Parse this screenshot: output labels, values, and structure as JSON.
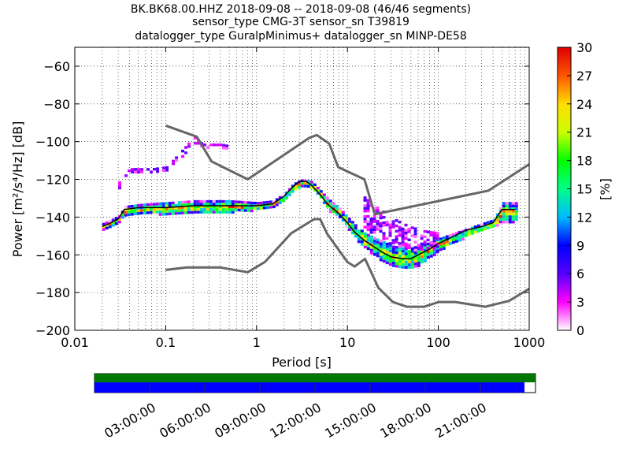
{
  "title_lines": [
    "BK.BK68.00.HHZ   2018-09-08 -- 2018-09-08  (46/46 segments)",
    "sensor_type CMG-3T sensor_sn T39819",
    "datalogger_type GuralpMinimus+ datalogger_sn MINP-DE58"
  ],
  "chart_data": {
    "type": "heatmap",
    "xlabel": "Period [s]",
    "ylabel": "Power [m²/s⁴/Hz] [dB]",
    "x_scale": "log",
    "xlim": [
      0.01,
      1000
    ],
    "ylim": [
      -200,
      -50
    ],
    "x_ticks": [
      {
        "value": 0.01,
        "label": "0.01"
      },
      {
        "value": 0.1,
        "label": "0.1"
      },
      {
        "value": 1,
        "label": "1"
      },
      {
        "value": 10,
        "label": "10"
      },
      {
        "value": 100,
        "label": "100"
      },
      {
        "value": 1000,
        "label": "1000"
      }
    ],
    "y_ticks": [
      -60,
      -80,
      -100,
      -120,
      -140,
      -160,
      -180,
      -200
    ],
    "y_tick_labels": [
      "−60",
      "−80",
      "−100",
      "−120",
      "−140",
      "−160",
      "−180",
      "−200"
    ],
    "grid": true,
    "colorbar": {
      "label": "[%]",
      "range": [
        0,
        30
      ],
      "ticks": [
        0,
        3,
        6,
        9,
        12,
        15,
        18,
        21,
        24,
        27,
        30
      ],
      "colors": [
        "#ffffff",
        "#ff00ff",
        "#5500ff",
        "#0000ff",
        "#00bbff",
        "#00ff88",
        "#00ff00",
        "#ccff00",
        "#ffdd00",
        "#ff5500",
        "#dd0000"
      ]
    },
    "series": [
      {
        "role": "nhnm",
        "color": "#666666",
        "x": [
          0.1,
          0.17,
          0.4,
          0.8,
          1.24,
          2.4,
          4.3,
          5,
          6,
          10,
          12,
          15.6,
          21.9,
          31.6,
          45,
          70,
          101,
          154,
          328,
          600,
          1000
        ],
        "y": [
          -168,
          -166.7,
          -166.7,
          -169.2,
          -163.7,
          -148.6,
          -141.1,
          -141.1,
          -149,
          -163.8,
          -166.2,
          -162.1,
          -177.5,
          -185,
          -187.5,
          -187.5,
          -185,
          -185,
          -187.5,
          -184.4,
          -178
        ]
      },
      {
        "role": "nlnm",
        "color": "#666666",
        "x": [
          0.1,
          0.22,
          0.32,
          0.8,
          3.8,
          4.6,
          6.3,
          7.9,
          15.4,
          20,
          354.8,
          1000
        ],
        "y": [
          -91.5,
          -97.4,
          -110.5,
          -120,
          -98,
          -96.5,
          -101,
          -113.5,
          -120,
          -138.5,
          -126,
          -112
        ]
      },
      {
        "role": "mode",
        "color": "#000000",
        "x": [
          0.02,
          0.025,
          0.03,
          0.035,
          0.05,
          0.1,
          0.2,
          0.5,
          1,
          1.5,
          2,
          2.5,
          3,
          3.5,
          4,
          5,
          6,
          8,
          10,
          12,
          15,
          20,
          25,
          30,
          40,
          50,
          60,
          80,
          100,
          150,
          200,
          300,
          400,
          500,
          700
        ],
        "y": [
          -145,
          -143,
          -141,
          -136,
          -135,
          -135,
          -134,
          -134,
          -134,
          -133,
          -129,
          -124,
          -121,
          -121,
          -123,
          -128,
          -133,
          -138,
          -143,
          -148,
          -152,
          -156,
          -159,
          -161,
          -162,
          -162,
          -160,
          -157,
          -154,
          -150,
          -147,
          -145,
          -143,
          -136,
          -136
        ]
      }
    ],
    "density_bands": [
      {
        "x": [
          0.02,
          0.025,
          0.03,
          0.035,
          0.05,
          0.1,
          0.2,
          0.5,
          1
        ],
        "lower": [
          -146,
          -144,
          -142,
          -139,
          -138,
          -138,
          -138,
          -137,
          -136
        ],
        "upper": [
          -143,
          -141,
          -139,
          -134,
          -133,
          -132,
          -131,
          -131,
          -132
        ]
      },
      {
        "x": [
          1,
          1.5,
          2,
          2.5,
          3,
          3.5,
          4,
          5,
          6,
          8,
          10,
          12,
          15,
          20,
          25,
          30,
          40,
          50,
          60,
          80,
          100,
          150,
          200,
          300,
          400,
          500,
          700
        ],
        "lower": [
          -136,
          -134,
          -131,
          -126,
          -123,
          -123,
          -125,
          -130,
          -136,
          -140,
          -146,
          -151,
          -156,
          -160,
          -164,
          -166,
          -167,
          -167,
          -165,
          -161,
          -157,
          -153,
          -150,
          -147,
          -145,
          -142,
          -142
        ],
        "upper": [
          -132,
          -131,
          -127,
          -122,
          -120,
          -120,
          -121,
          -126,
          -130,
          -135,
          -140,
          -144,
          -148,
          -151,
          -153,
          -155,
          -156,
          -156,
          -155,
          -153,
          -151,
          -148,
          -146,
          -143,
          -141,
          -132,
          -132
        ]
      },
      {
        "x": [
          0.03,
          0.035,
          0.04,
          0.05,
          0.07,
          0.1,
          0.15,
          0.2,
          0.25,
          0.3,
          0.4,
          0.5
        ],
        "lower": [
          -125,
          -118,
          -116,
          -116,
          -116,
          -115,
          -108,
          -101,
          -103,
          -103,
          -103,
          -104
        ],
        "upper": [
          -121,
          -116,
          -114,
          -114,
          -114,
          -113,
          -104,
          -97,
          -101,
          -101,
          -101,
          -102
        ]
      },
      {
        "x": [
          15,
          20,
          25,
          30,
          40,
          50,
          70,
          100
        ],
        "lower": [
          -145,
          -150,
          -152,
          -155,
          -156,
          -157,
          -158,
          -158
        ],
        "upper": [
          -129,
          -134,
          -137,
          -140,
          -143,
          -145,
          -147,
          -148
        ]
      }
    ],
    "timeline": {
      "labels": [
        "03:00:00",
        "06:00:00",
        "09:00:00",
        "12:00:00",
        "15:00:00",
        "18:00:00",
        "21:00:00"
      ],
      "hours": [
        3,
        6,
        9,
        12,
        15,
        18,
        21
      ],
      "range_hours": [
        0,
        24
      ],
      "top_bar_color": "#007700",
      "top_bar_coverage": 1.0,
      "bottom_bar_color": "#0000ff",
      "bottom_bar_coverage": 0.975
    }
  }
}
